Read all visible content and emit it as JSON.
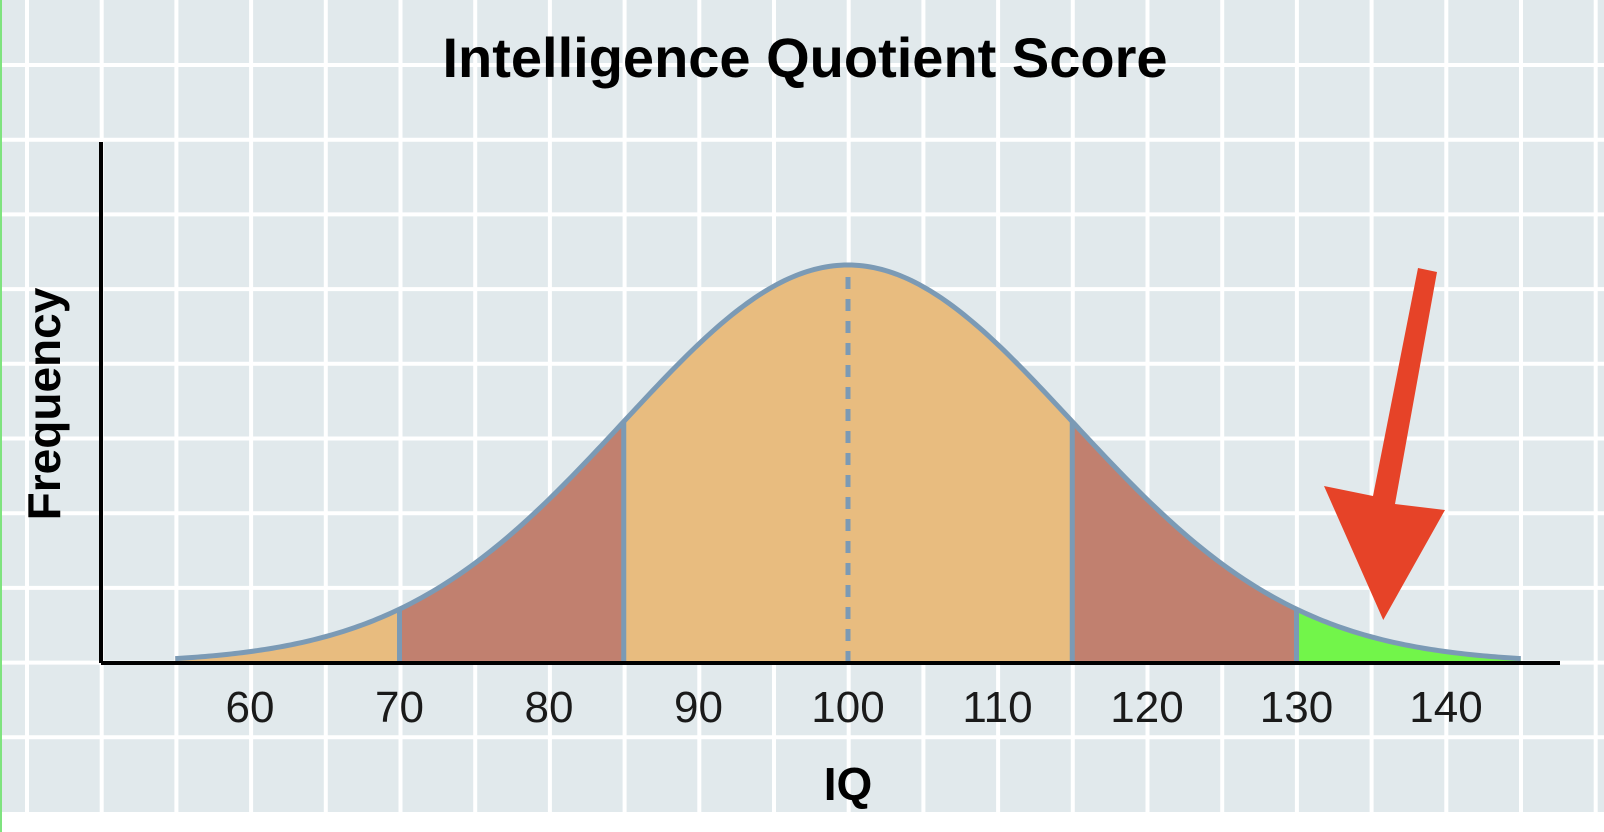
{
  "chart_data": {
    "type": "area",
    "title": "Intelligence Quotient Score",
    "xlabel": "IQ",
    "ylabel": "Frequency",
    "xlim": [
      55,
      145
    ],
    "x_ticks": [
      "60",
      "70",
      "80",
      "90",
      "100",
      "110",
      "120",
      "130",
      "140"
    ],
    "distribution": {
      "kind": "normal",
      "mean": 100,
      "sd": 15
    },
    "regions": [
      {
        "from": 55,
        "to": 70,
        "color": "#e8bc7f"
      },
      {
        "from": 70,
        "to": 85,
        "color": "#c1806f"
      },
      {
        "from": 85,
        "to": 115,
        "color": "#e8bc7f"
      },
      {
        "from": 115,
        "to": 130,
        "color": "#c1806f"
      },
      {
        "from": 130,
        "to": 145,
        "color": "#72f54a"
      }
    ],
    "mean_line": {
      "x": 100,
      "style": "dashed"
    },
    "annotation": {
      "kind": "arrow",
      "points_to_x": 135,
      "color": "#e64328"
    },
    "grid": true,
    "colors": {
      "background": "#e1e9ec",
      "grid": "#ffffff",
      "curve": "#7b9ab5",
      "axis": "#000000"
    }
  }
}
